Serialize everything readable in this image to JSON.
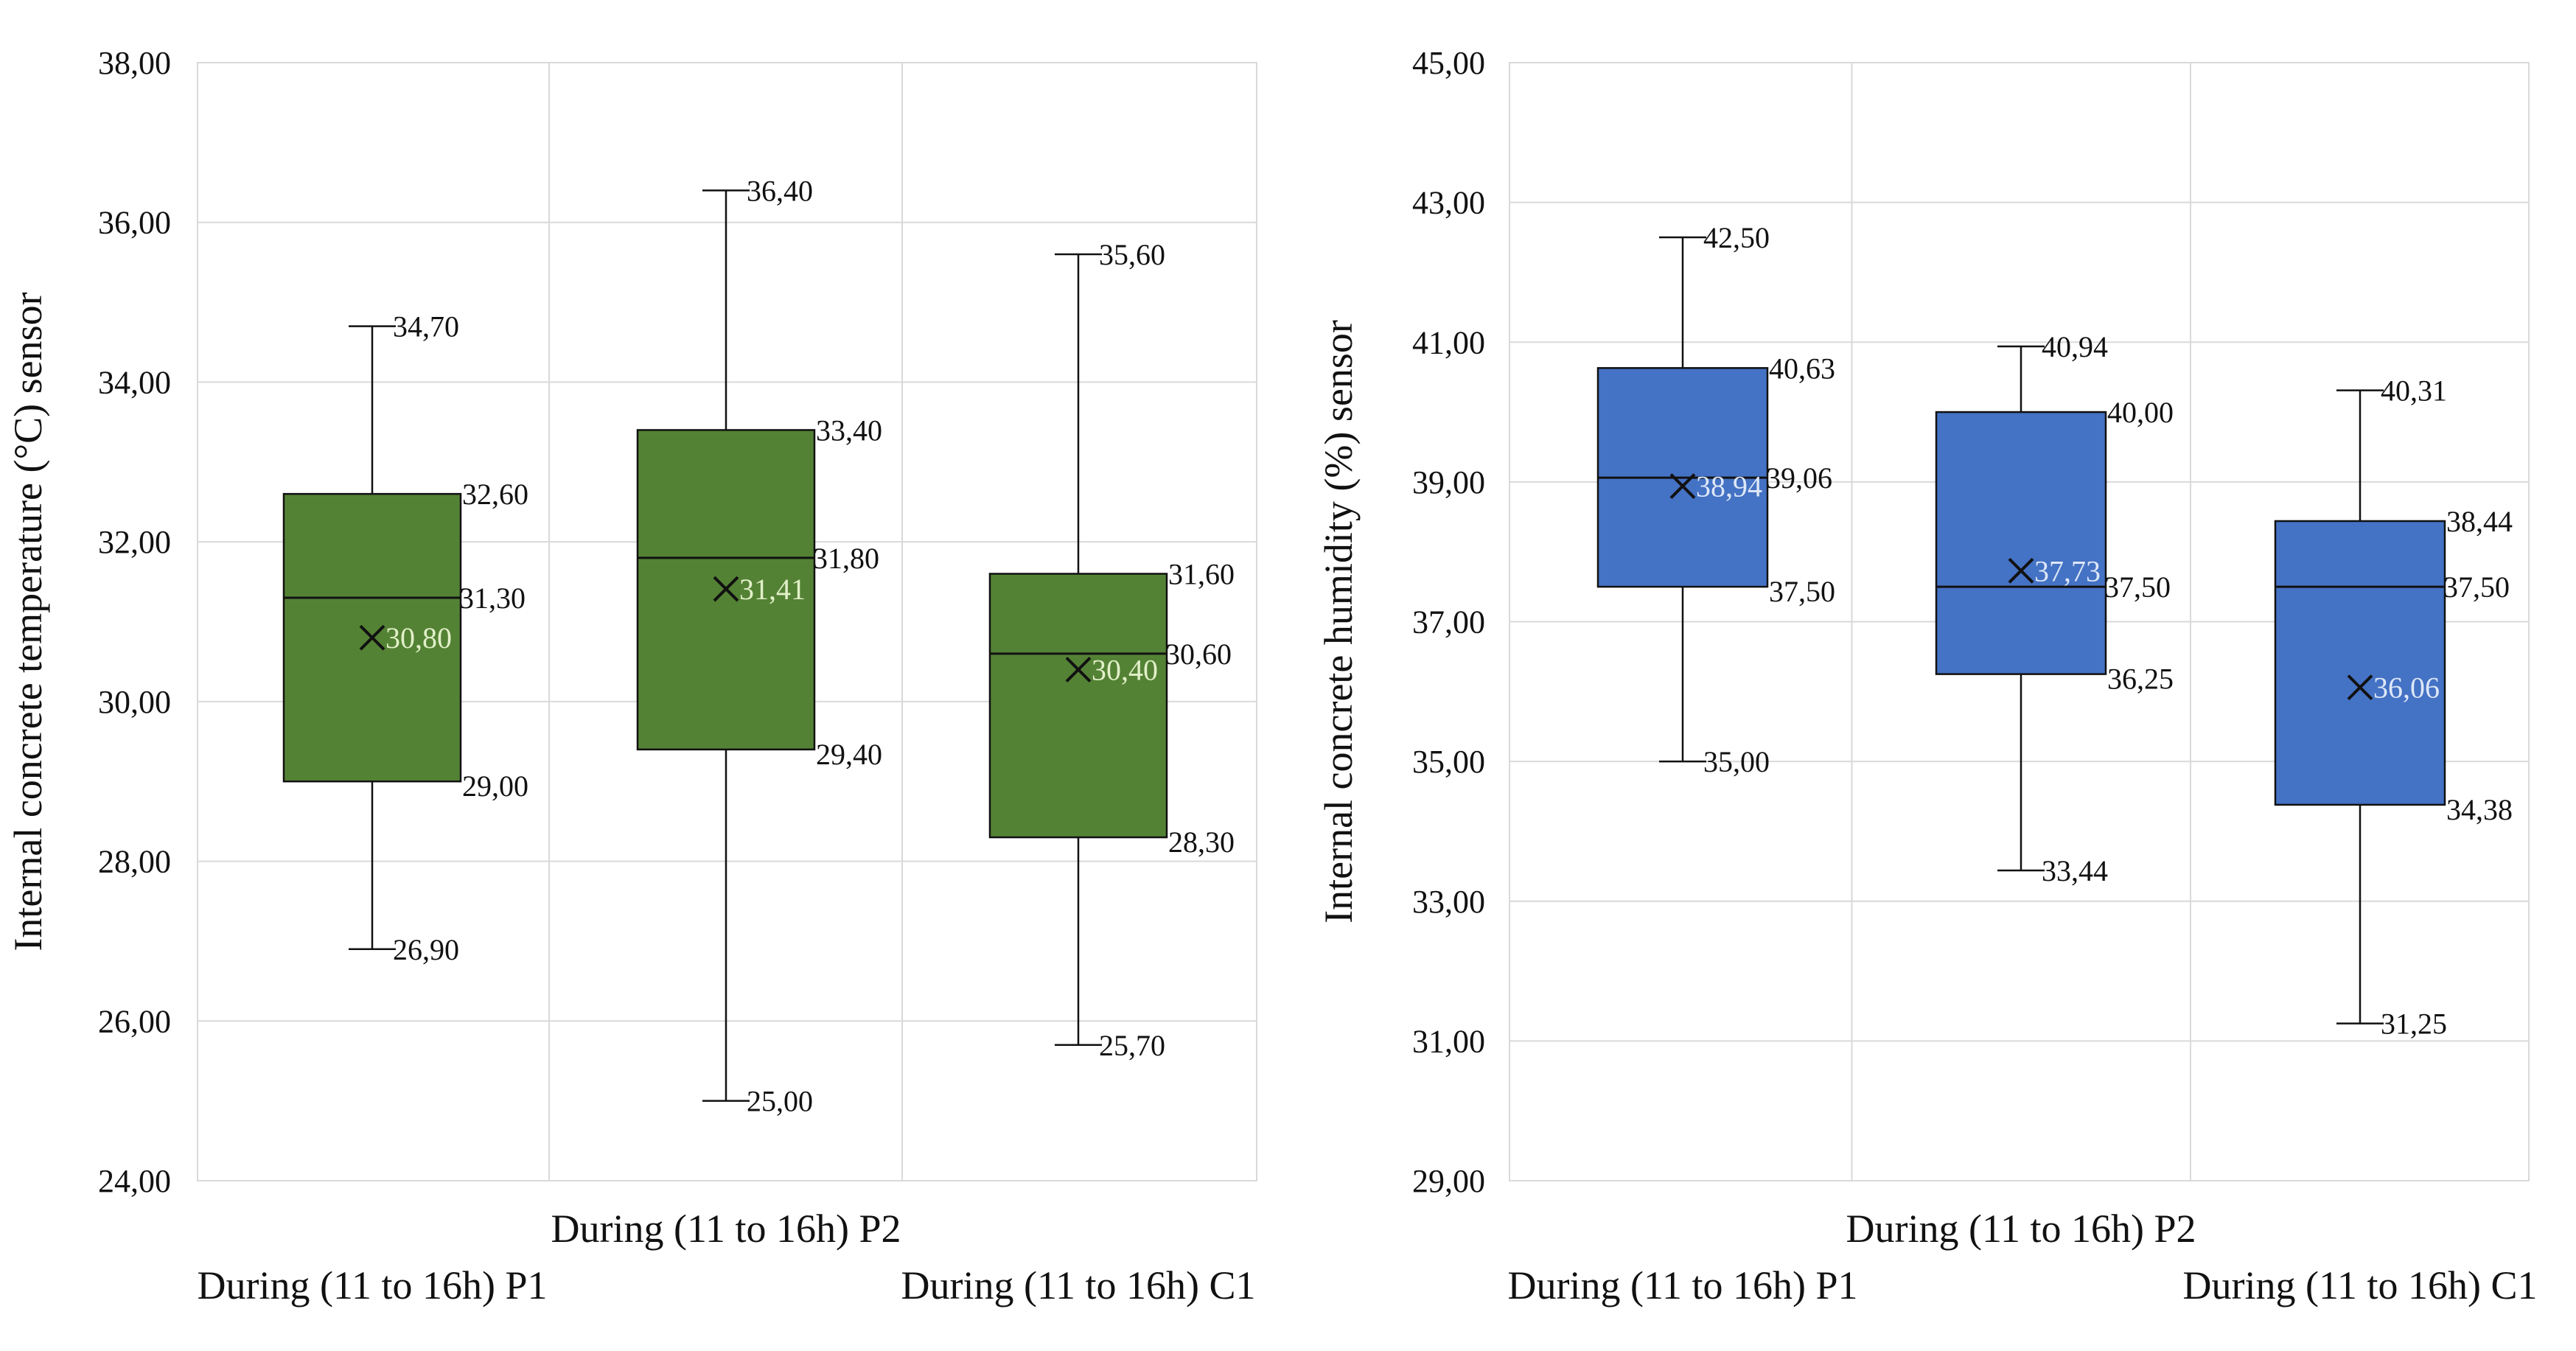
{
  "chart_data": [
    {
      "type": "box",
      "ylabel": "Internal concrete temperature (°C) sensor",
      "xlabel": "",
      "ylim": [
        24,
        38
      ],
      "yticks": [
        "24,00",
        "26,00",
        "28,00",
        "30,00",
        "32,00",
        "34,00",
        "36,00",
        "38,00"
      ],
      "grid": true,
      "color": "#548235",
      "mean_label_color": "#e2f0c9",
      "categories": [
        "During (11 to 16h) P1",
        "During (11 to 16h) P2",
        "During (11 to 16h) C1"
      ],
      "series": [
        {
          "category": "During (11 to 16h) P1",
          "min": 26.9,
          "q1": 29.0,
          "median": 31.3,
          "q3": 32.6,
          "max": 34.7,
          "mean": 30.8,
          "labels": {
            "min": "26,90",
            "q1": "29,00",
            "median": "31,30",
            "q3": "32,60",
            "max": "34,70",
            "mean": "30,80"
          }
        },
        {
          "category": "During (11 to 16h) P2",
          "min": 25.0,
          "q1": 29.4,
          "median": 31.8,
          "q3": 33.4,
          "max": 36.4,
          "mean": 31.41,
          "labels": {
            "min": "25,00",
            "q1": "29,40",
            "median": "31,80",
            "q3": "33,40",
            "max": "36,40",
            "mean": "31,41"
          }
        },
        {
          "category": "During (11 to 16h) C1",
          "min": 25.7,
          "q1": 28.3,
          "median": 30.6,
          "q3": 31.6,
          "max": 35.6,
          "mean": 30.4,
          "labels": {
            "min": "25,70",
            "q1": "28,30",
            "median": "30,60",
            "q3": "31,60",
            "max": "35,60",
            "mean": "30,40"
          }
        }
      ]
    },
    {
      "type": "box",
      "ylabel": "Internal concrete humidity (%) sensor",
      "xlabel": "",
      "ylim": [
        29,
        45
      ],
      "yticks": [
        "29,00",
        "31,00",
        "33,00",
        "35,00",
        "37,00",
        "39,00",
        "41,00",
        "43,00",
        "45,00"
      ],
      "grid": true,
      "color": "#4472c4",
      "mean_label_color": "#dde7f7",
      "categories": [
        "During (11 to 16h) P1",
        "During (11 to 16h) P2",
        "During (11 to 16h) C1"
      ],
      "series": [
        {
          "category": "During (11 to 16h) P1",
          "min": 35.0,
          "q1": 37.5,
          "median": 39.06,
          "q3": 40.63,
          "max": 42.5,
          "mean": 38.94,
          "labels": {
            "min": "35,00",
            "q1": "37,50",
            "median": "39,06",
            "q3": "40,63",
            "max": "42,50",
            "mean": "38,94"
          }
        },
        {
          "category": "During (11 to 16h) P2",
          "min": 33.44,
          "q1": 36.25,
          "median": 37.5,
          "q3": 40.0,
          "max": 40.94,
          "mean": 37.73,
          "labels": {
            "min": "33,44",
            "q1": "36,25",
            "median": "37,50",
            "q3": "40,00",
            "max": "40,94",
            "mean": "37,73"
          }
        },
        {
          "category": "During (11 to 16h) C1",
          "min": 31.25,
          "q1": 34.38,
          "median": 37.5,
          "q3": 38.44,
          "max": 40.31,
          "mean": 36.06,
          "labels": {
            "min": "31,25",
            "q1": "34,38",
            "median": "37,50",
            "q3": "38,44",
            "max": "40,31",
            "mean": "36,06"
          }
        }
      ]
    }
  ]
}
